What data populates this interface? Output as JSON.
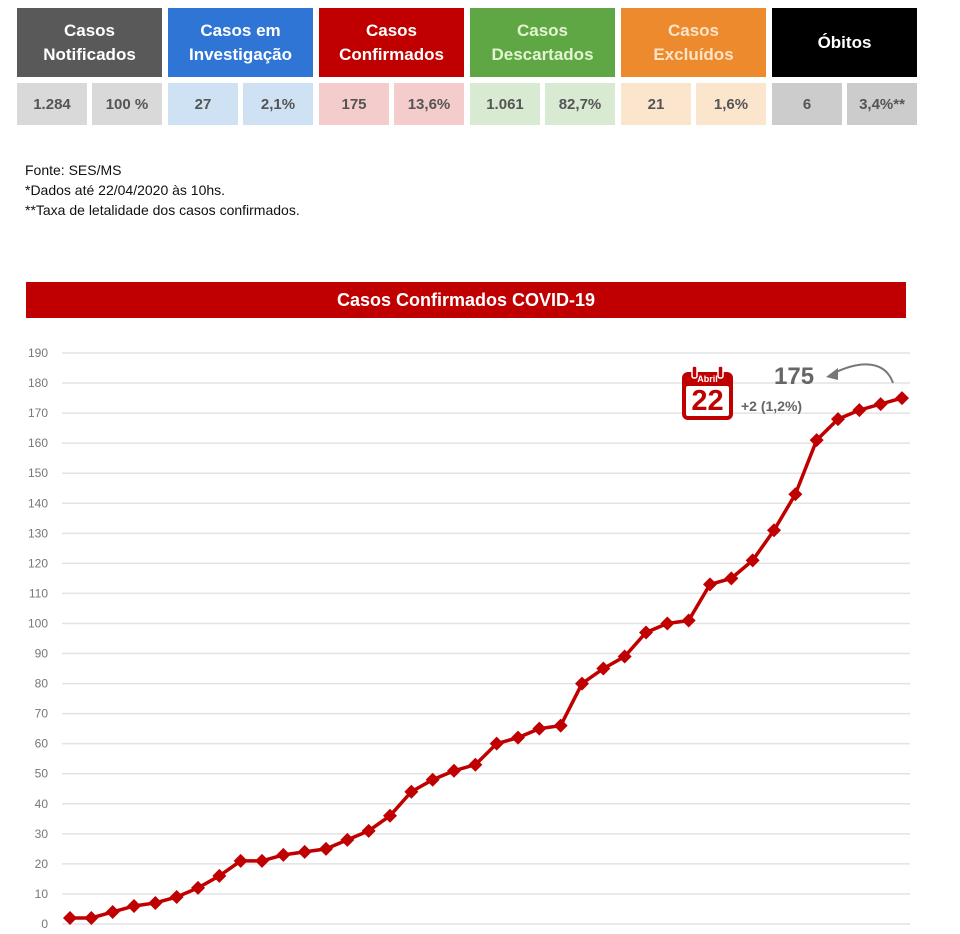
{
  "summary": [
    {
      "label": "Casos Notificados",
      "line1": "Casos",
      "line2": "Notificados",
      "count": "1.284",
      "percent": "100 %",
      "head_color": "#595959",
      "head_text": "#ffffff",
      "val_bg": "#d9d9d9"
    },
    {
      "label": "Casos em Investigação",
      "line1": "Casos em",
      "line2": "Investigação",
      "count": "27",
      "percent": "2,1%",
      "head_color": "#2f75d6",
      "head_text": "#ffffff",
      "val_bg": "#cfe2f3"
    },
    {
      "label": "Casos Confirmados",
      "line1": "Casos",
      "line2": "Confirmados",
      "count": "175",
      "percent": "13,6%",
      "head_color": "#c00000",
      "head_text": "#ffffff",
      "val_bg": "#f4cccc"
    },
    {
      "label": "Casos Descartados",
      "line1": "Casos",
      "line2": "Descartados",
      "count": "1.061",
      "percent": "82,7%",
      "head_color": "#5fa744",
      "head_text": "#e2f5d0",
      "val_bg": "#d9ead3"
    },
    {
      "label": "Casos Excluídos",
      "line1": "Casos",
      "line2": "Excluídos",
      "count": "21",
      "percent": "1,6%",
      "head_color": "#ed8a2e",
      "head_text": "#fde3c7",
      "val_bg": "#fce5cd"
    },
    {
      "label": "Óbitos",
      "line1": "Óbitos",
      "line2": "",
      "count": "6",
      "percent": "3,4%**",
      "head_color": "#000000",
      "head_text": "#ffffff",
      "val_bg": "#cccccc"
    }
  ],
  "notes": {
    "source": "Fonte: SES/MS",
    "date_note": "*Dados até 22/04/2020 às 10hs.",
    "lethality_note": "**Taxa de letalidade dos casos confirmados."
  },
  "chart_data": {
    "type": "line",
    "title": "Casos Confirmados COVID-19",
    "xlabel": "",
    "ylabel": "",
    "ylim": [
      0,
      190
    ],
    "yticks": [
      0,
      10,
      20,
      30,
      40,
      50,
      60,
      70,
      80,
      90,
      100,
      110,
      120,
      130,
      140,
      150,
      160,
      170,
      180,
      190
    ],
    "grid": true,
    "series": [
      {
        "name": "Casos Confirmados",
        "color": "#c00000",
        "marker": "diamond",
        "values": [
          2,
          2,
          4,
          6,
          7,
          9,
          12,
          16,
          21,
          21,
          23,
          24,
          25,
          28,
          31,
          36,
          44,
          48,
          51,
          53,
          60,
          62,
          65,
          66,
          80,
          85,
          89,
          97,
          100,
          101,
          113,
          115,
          121,
          131,
          143,
          161,
          168,
          171,
          173,
          175
        ]
      }
    ],
    "annotation": {
      "calendar_month": "Abril",
      "calendar_day": "22",
      "latest_value": "175",
      "delta": "+2 (1,2%)"
    }
  }
}
